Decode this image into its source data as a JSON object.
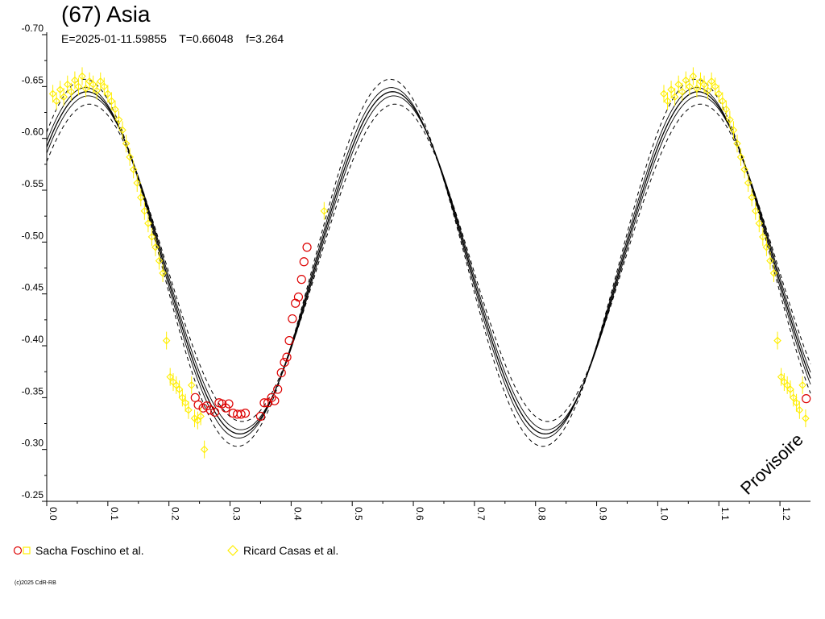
{
  "title": "(67) Asia",
  "subtitle": "E=2025-01-11.59855    T=0.66048    f=3.264",
  "watermark": "Provisoire",
  "copyright": "(c)2025 CdR-RB",
  "colors": {
    "fit": "#000000",
    "series_red": "#dd0000",
    "series_yellow": "#ffee00",
    "background": "#ffffff"
  },
  "chart_data": {
    "type": "scatter",
    "xlim": [
      0.0,
      1.25
    ],
    "ylim": [
      -0.7,
      -0.25
    ],
    "y_inverted": true,
    "x_ticks": [
      "0.0",
      "0.1",
      "0.2",
      "0.3",
      "0.4",
      "0.5",
      "0.6",
      "0.7",
      "0.8",
      "0.9",
      "1.0",
      "1.1",
      "1.2"
    ],
    "y_ticks": [
      "-0.70",
      "-0.65",
      "-0.60",
      "-0.55",
      "-0.50",
      "-0.45",
      "-0.40",
      "-0.35",
      "-0.30",
      "-0.25"
    ],
    "fit_model": {
      "description": "Fourier fit over two periods per phase, with dashed envelopes",
      "mean": -0.48,
      "amplitude": 0.165,
      "phase_of_max_brightness": 0.066,
      "envelope_offsets": [
        0.004,
        0.012
      ]
    },
    "series": [
      {
        "name": "Sacha Foschino et al.",
        "marker": "circle",
        "color": "#dd0000",
        "points": [
          [
            0.243,
            -0.35
          ],
          [
            0.248,
            -0.343
          ],
          [
            0.256,
            -0.34
          ],
          [
            0.262,
            -0.342
          ],
          [
            0.268,
            -0.338
          ],
          [
            0.275,
            -0.336
          ],
          [
            0.282,
            -0.345
          ],
          [
            0.287,
            -0.344
          ],
          [
            0.293,
            -0.34
          ],
          [
            0.298,
            -0.344
          ],
          [
            0.305,
            -0.335
          ],
          [
            0.312,
            -0.334
          ],
          [
            0.318,
            -0.334
          ],
          [
            0.325,
            -0.335
          ],
          [
            0.35,
            -0.332
          ],
          [
            0.356,
            -0.345
          ],
          [
            0.362,
            -0.345
          ],
          [
            0.368,
            -0.35
          ],
          [
            0.373,
            -0.347
          ],
          [
            0.378,
            -0.358
          ],
          [
            0.384,
            -0.374
          ],
          [
            0.389,
            -0.384
          ],
          [
            0.393,
            -0.389
          ],
          [
            0.397,
            -0.405
          ],
          [
            0.402,
            -0.426
          ],
          [
            0.407,
            -0.441
          ],
          [
            0.412,
            -0.447
          ],
          [
            0.417,
            -0.464
          ],
          [
            0.421,
            -0.481
          ],
          [
            0.426,
            -0.495
          ],
          [
            1.243,
            -0.349
          ]
        ]
      },
      {
        "name": "Ricard Casas et al.",
        "marker": "diamond",
        "color": "#ffee00",
        "points": [
          [
            0.01,
            -0.643
          ],
          [
            0.016,
            -0.636
          ],
          [
            0.022,
            -0.647
          ],
          [
            0.028,
            -0.64
          ],
          [
            0.034,
            -0.652
          ],
          [
            0.04,
            -0.645
          ],
          [
            0.046,
            -0.656
          ],
          [
            0.052,
            -0.65
          ],
          [
            0.058,
            -0.66
          ],
          [
            0.064,
            -0.648
          ],
          [
            0.07,
            -0.655
          ],
          [
            0.076,
            -0.652
          ],
          [
            0.082,
            -0.646
          ],
          [
            0.088,
            -0.655
          ],
          [
            0.094,
            -0.65
          ],
          [
            0.1,
            -0.643
          ],
          [
            0.106,
            -0.636
          ],
          [
            0.112,
            -0.628
          ],
          [
            0.118,
            -0.618
          ],
          [
            0.124,
            -0.608
          ],
          [
            0.13,
            -0.595
          ],
          [
            0.136,
            -0.582
          ],
          [
            0.142,
            -0.57
          ],
          [
            0.148,
            -0.557
          ],
          [
            0.154,
            -0.543
          ],
          [
            0.16,
            -0.53
          ],
          [
            0.166,
            -0.518
          ],
          [
            0.172,
            -0.505
          ],
          [
            0.178,
            -0.495
          ],
          [
            0.184,
            -0.482
          ],
          [
            0.19,
            -0.47
          ],
          [
            0.196,
            -0.405
          ],
          [
            0.202,
            -0.37
          ],
          [
            0.207,
            -0.365
          ],
          [
            0.212,
            -0.362
          ],
          [
            0.217,
            -0.358
          ],
          [
            0.222,
            -0.35
          ],
          [
            0.227,
            -0.345
          ],
          [
            0.232,
            -0.338
          ],
          [
            0.237,
            -0.362
          ],
          [
            0.242,
            -0.33
          ],
          [
            0.247,
            -0.328
          ],
          [
            0.252,
            -0.332
          ],
          [
            0.258,
            -0.3
          ],
          [
            0.454,
            -0.53
          ],
          [
            1.01,
            -0.643
          ],
          [
            1.016,
            -0.636
          ],
          [
            1.022,
            -0.647
          ],
          [
            1.028,
            -0.64
          ],
          [
            1.034,
            -0.652
          ],
          [
            1.04,
            -0.645
          ],
          [
            1.046,
            -0.656
          ],
          [
            1.052,
            -0.65
          ],
          [
            1.058,
            -0.66
          ],
          [
            1.064,
            -0.648
          ],
          [
            1.07,
            -0.655
          ],
          [
            1.076,
            -0.652
          ],
          [
            1.082,
            -0.646
          ],
          [
            1.088,
            -0.655
          ],
          [
            1.094,
            -0.65
          ],
          [
            1.1,
            -0.643
          ],
          [
            1.106,
            -0.636
          ],
          [
            1.112,
            -0.628
          ],
          [
            1.118,
            -0.618
          ],
          [
            1.124,
            -0.608
          ],
          [
            1.13,
            -0.595
          ],
          [
            1.136,
            -0.582
          ],
          [
            1.142,
            -0.57
          ],
          [
            1.148,
            -0.557
          ],
          [
            1.154,
            -0.543
          ],
          [
            1.16,
            -0.53
          ],
          [
            1.166,
            -0.518
          ],
          [
            1.172,
            -0.505
          ],
          [
            1.178,
            -0.495
          ],
          [
            1.184,
            -0.482
          ],
          [
            1.19,
            -0.47
          ],
          [
            1.196,
            -0.405
          ],
          [
            1.202,
            -0.37
          ],
          [
            1.207,
            -0.365
          ],
          [
            1.212,
            -0.362
          ],
          [
            1.217,
            -0.358
          ],
          [
            1.222,
            -0.35
          ],
          [
            1.227,
            -0.345
          ],
          [
            1.232,
            -0.338
          ],
          [
            1.237,
            -0.362
          ],
          [
            1.242,
            -0.33
          ]
        ]
      }
    ],
    "legend": [
      {
        "label": "Sacha Foschino et al.",
        "marker": "circle+square"
      },
      {
        "label": "Ricard Casas et al.",
        "marker": "diamond"
      }
    ]
  }
}
